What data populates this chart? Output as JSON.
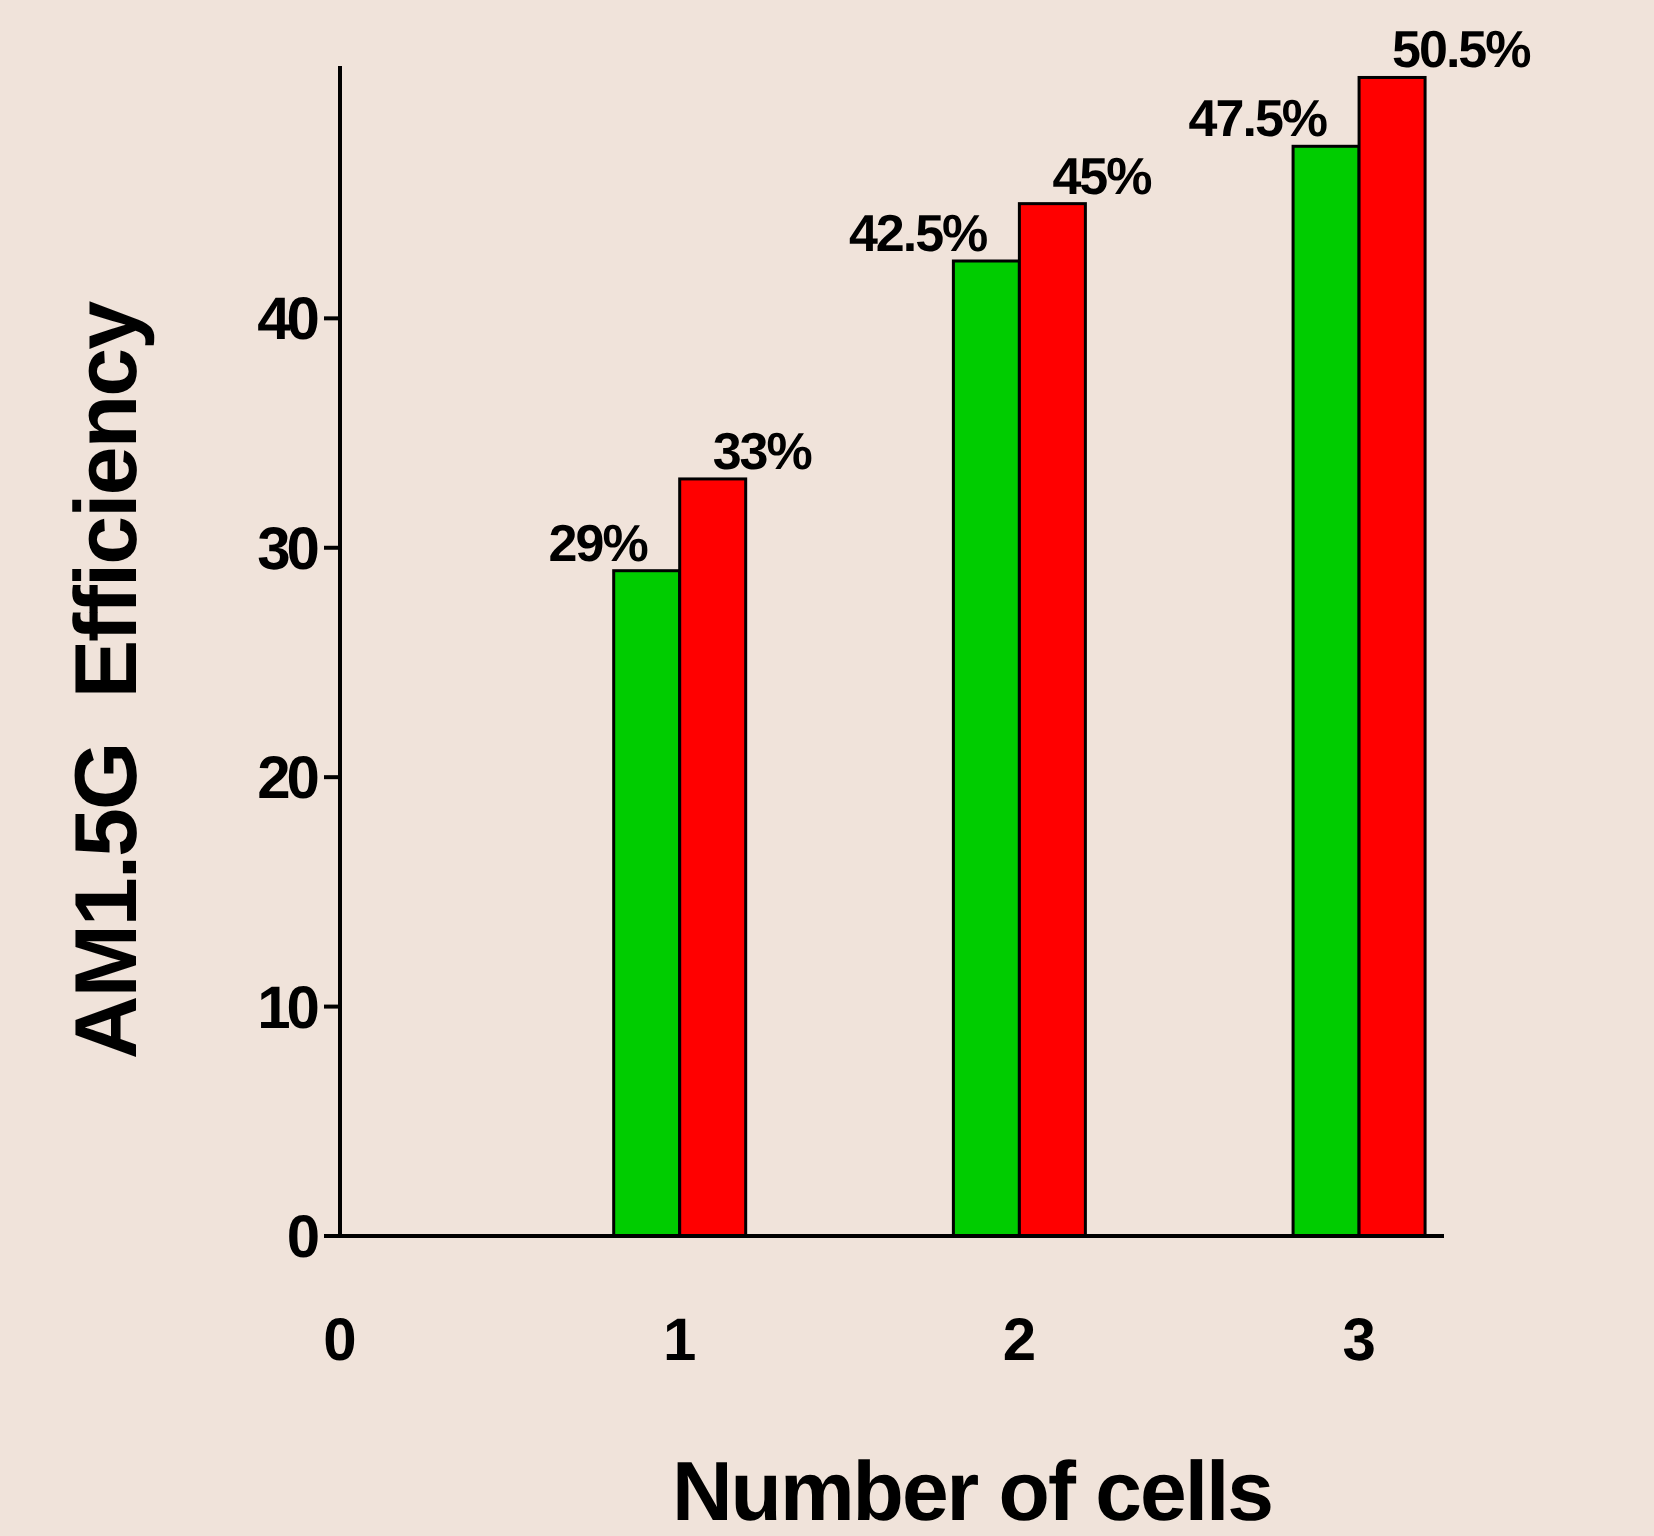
{
  "chart_data": {
    "type": "bar",
    "xlabel": "Number of cells",
    "ylabel": "AM1.5G  Efficiency",
    "x": [
      1,
      2,
      3
    ],
    "xlim": [
      0,
      3.25
    ],
    "xticks": [
      0,
      1,
      2,
      3
    ],
    "ylim": [
      0,
      51
    ],
    "yticks": [
      0,
      10,
      20,
      30,
      40
    ],
    "series": [
      {
        "color": "#00cc00",
        "values": [
          29,
          42.5,
          47.5
        ],
        "value_labels": [
          "29%",
          "42.5%",
          "47.5%"
        ]
      },
      {
        "color": "#ff0000",
        "values": [
          33,
          45,
          50.5
        ],
        "value_labels": [
          "33%",
          "45%",
          "50.5%"
        ]
      }
    ],
    "grid": false
  }
}
